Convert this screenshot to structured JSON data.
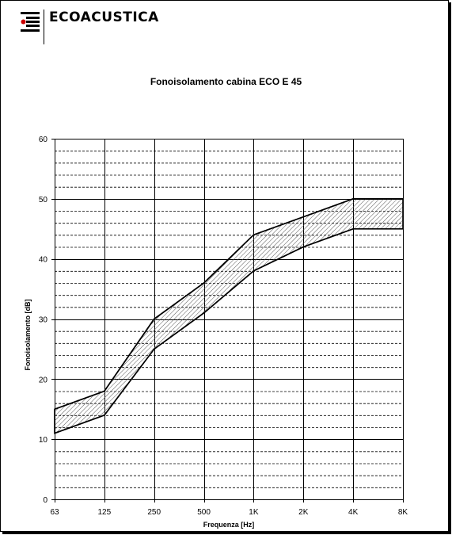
{
  "brand": {
    "name": "ECOACUSTICA",
    "logo_icon": "ecoacustica-logo-icon"
  },
  "colors": {
    "band_stroke": "#000000",
    "hatch": "#555555",
    "grid": "#000000",
    "accent": "#cc0000"
  },
  "chart_data": {
    "type": "area",
    "title": "Fonoisolamento cabina ECO E 45",
    "xlabel": "Frequenza  [Hz]",
    "ylabel": "Fonoisolamento [dB]",
    "categories": [
      "63",
      "125",
      "250",
      "500",
      "1K",
      "2K",
      "4K",
      "8K"
    ],
    "ylim": [
      0,
      60
    ],
    "yticks": [
      0,
      10,
      20,
      30,
      40,
      50,
      60
    ],
    "grid": {
      "major_y": 10,
      "minor_y": 2,
      "vertical": true
    },
    "legend": "none",
    "series": [
      {
        "values": [
          15,
          18,
          30,
          36,
          44,
          47,
          50,
          50
        ]
      },
      {
        "values": [
          11,
          14,
          25,
          31,
          38,
          42,
          45,
          45
        ]
      }
    ]
  }
}
